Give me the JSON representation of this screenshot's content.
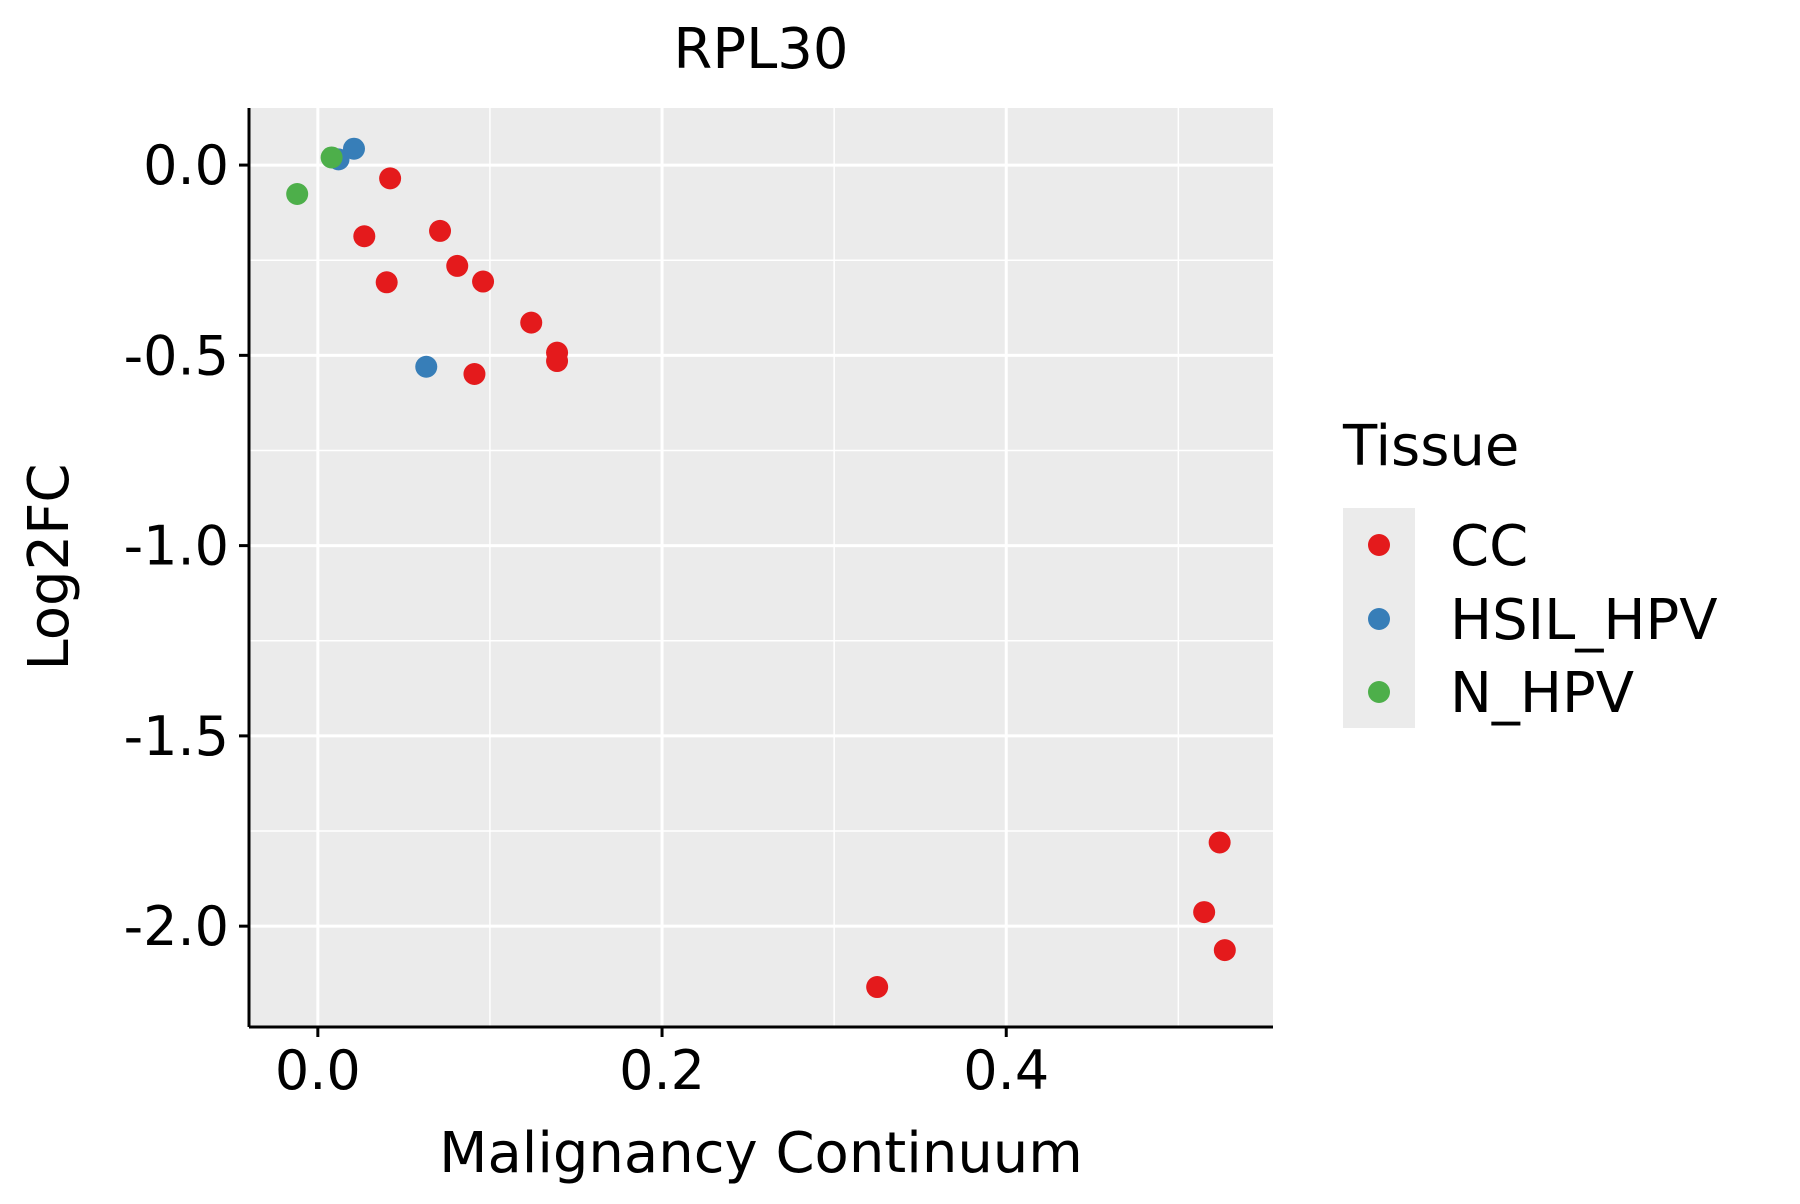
{
  "chart_data": {
    "type": "scatter",
    "title": "RPL30",
    "xlabel": "Malignancy Continuum",
    "ylabel": "Log2FC",
    "xlim": [
      -0.04,
      0.555
    ],
    "ylim": [
      -2.265,
      0.15
    ],
    "x_ticks": [
      0.0,
      0.2,
      0.4
    ],
    "x_tick_labels": [
      "0.0",
      "0.2",
      "0.4"
    ],
    "x_minor_ticks": [
      0.1,
      0.3,
      0.5
    ],
    "y_ticks": [
      0.0,
      -0.5,
      -1.0,
      -1.5,
      -2.0
    ],
    "y_tick_labels": [
      "0.0",
      "-0.5",
      "-1.0",
      "-1.5",
      "-2.0"
    ],
    "y_minor_ticks": [
      -0.25,
      -0.75,
      -1.25,
      -1.75
    ],
    "grid": true,
    "legend": {
      "title": "Tissue",
      "position": "right",
      "entries": [
        {
          "label": "CC",
          "color": "#E41A1C"
        },
        {
          "label": "HSIL_HPV",
          "color": "#377EB8"
        },
        {
          "label": "N_HPV",
          "color": "#4DAF4A"
        }
      ]
    },
    "series": [
      {
        "name": "CC",
        "color": "#E41A1C",
        "points": [
          {
            "x": 0.042,
            "y": -0.035
          },
          {
            "x": 0.027,
            "y": -0.187
          },
          {
            "x": 0.071,
            "y": -0.173
          },
          {
            "x": 0.081,
            "y": -0.265
          },
          {
            "x": 0.04,
            "y": -0.308
          },
          {
            "x": 0.096,
            "y": -0.306
          },
          {
            "x": 0.124,
            "y": -0.414
          },
          {
            "x": 0.139,
            "y": -0.493
          },
          {
            "x": 0.139,
            "y": -0.515
          },
          {
            "x": 0.091,
            "y": -0.549
          },
          {
            "x": 0.325,
            "y": -2.16
          },
          {
            "x": 0.524,
            "y": -1.78
          },
          {
            "x": 0.515,
            "y": -1.963
          },
          {
            "x": 0.527,
            "y": -2.063
          }
        ]
      },
      {
        "name": "HSIL_HPV",
        "color": "#377EB8",
        "points": [
          {
            "x": 0.021,
            "y": 0.043
          },
          {
            "x": 0.012,
            "y": 0.015
          },
          {
            "x": 0.063,
            "y": -0.53
          }
        ]
      },
      {
        "name": "N_HPV",
        "color": "#4DAF4A",
        "points": [
          {
            "x": 0.008,
            "y": 0.02
          },
          {
            "x": -0.012,
            "y": -0.076
          }
        ]
      }
    ]
  }
}
